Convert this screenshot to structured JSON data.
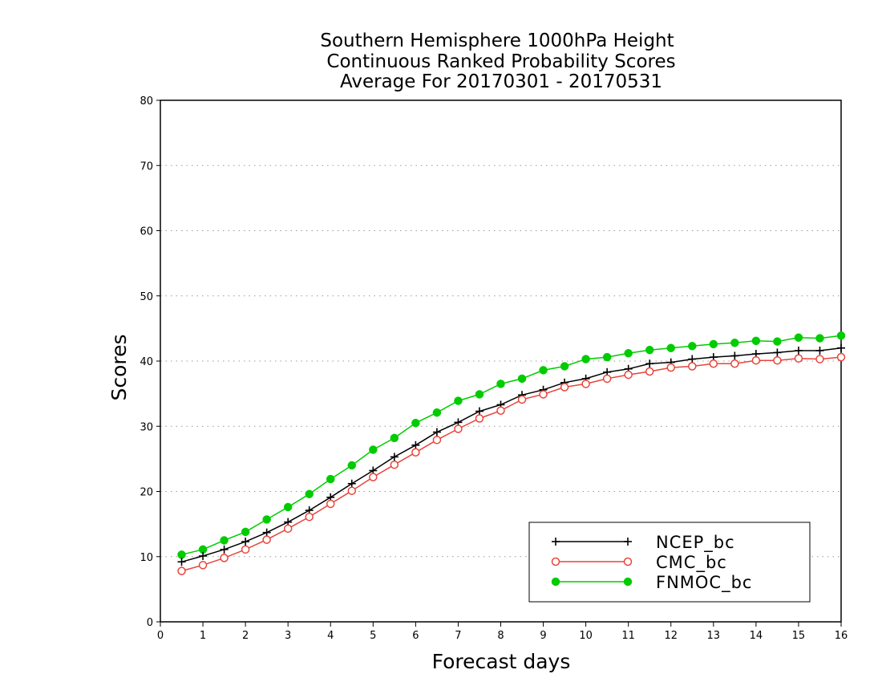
{
  "chart_data": {
    "type": "line",
    "title_lines": [
      "Southern Hemisphere 1000hPa Height",
      "Continuous Ranked Probability Scores",
      "Average For 20170301 - 20170531"
    ],
    "xlabel": "Forecast days",
    "ylabel": "Scores",
    "xlim": [
      0,
      16
    ],
    "ylim": [
      0,
      80
    ],
    "xticks": [
      "0",
      "1",
      "2",
      "3",
      "4",
      "5",
      "6",
      "7",
      "8",
      "9",
      "10",
      "11",
      "12",
      "13",
      "14",
      "15",
      "16"
    ],
    "yticks": [
      "0",
      "10",
      "20",
      "30",
      "40",
      "50",
      "60",
      "70",
      "80"
    ],
    "grid": "horizontal dotted",
    "legend_position": "bottom-right",
    "x": [
      0.5,
      1,
      1.5,
      2,
      2.5,
      3,
      3.5,
      4,
      4.5,
      5,
      5.5,
      6,
      6.5,
      7,
      7.5,
      8,
      8.5,
      9,
      9.5,
      10,
      10.5,
      11,
      11.5,
      12,
      12.5,
      13,
      13.5,
      14,
      14.5,
      15,
      15.5,
      16
    ],
    "series": [
      {
        "name": "NCEP_bc",
        "color": "#000000",
        "marker": "plus",
        "values": [
          9.2,
          10.1,
          11.1,
          12.3,
          13.7,
          15.3,
          17.1,
          19.1,
          21.2,
          23.2,
          25.3,
          27.1,
          29.1,
          30.6,
          32.3,
          33.3,
          34.8,
          35.6,
          36.7,
          37.3,
          38.3,
          38.8,
          39.6,
          39.8,
          40.3,
          40.6,
          40.8,
          41.1,
          41.3,
          41.6,
          41.6,
          42.0
        ]
      },
      {
        "name": "CMC_bc",
        "color": "#e8443a",
        "marker": "open-circle",
        "values": [
          7.8,
          8.7,
          9.8,
          11.1,
          12.6,
          14.3,
          16.1,
          18.1,
          20.1,
          22.2,
          24.1,
          26.0,
          27.9,
          29.6,
          31.2,
          32.4,
          34.1,
          34.9,
          36.0,
          36.5,
          37.3,
          37.9,
          38.4,
          39.0,
          39.2,
          39.6,
          39.6,
          40.1,
          40.1,
          40.4,
          40.3,
          40.6
        ]
      },
      {
        "name": "FNMOC_bc",
        "color": "#00cc00",
        "marker": "filled-circle",
        "values": [
          10.3,
          11.1,
          12.5,
          13.8,
          15.7,
          17.6,
          19.6,
          21.9,
          24.0,
          26.4,
          28.2,
          30.5,
          32.1,
          33.9,
          34.9,
          36.5,
          37.3,
          38.6,
          39.2,
          40.3,
          40.6,
          41.2,
          41.7,
          42.0,
          42.3,
          42.6,
          42.8,
          43.1,
          43.0,
          43.6,
          43.5,
          43.9
        ]
      }
    ]
  }
}
